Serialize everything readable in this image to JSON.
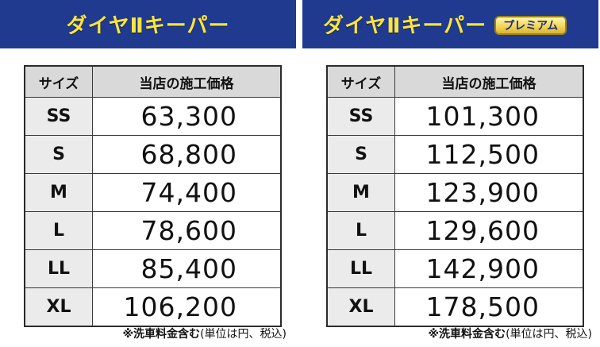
{
  "left": {
    "title": "ダイヤⅡキーパー",
    "headers": {
      "size": "サイズ",
      "price": "当店の施工価格"
    },
    "rows": [
      {
        "size": "SS",
        "price": "63,300"
      },
      {
        "size": "S",
        "price": "68,800"
      },
      {
        "size": "M",
        "price": "74,400"
      },
      {
        "size": "L",
        "price": "78,600"
      },
      {
        "size": "LL",
        "price": "85,400"
      },
      {
        "size": "XL",
        "price": "106,200"
      }
    ],
    "note_bold": "※洗車料金含む",
    "note_rest": "(単位は円、税込)"
  },
  "right": {
    "title": "ダイヤⅡキーパー",
    "badge": "プレミアム",
    "headers": {
      "size": "サイズ",
      "price": "当店の施工価格"
    },
    "rows": [
      {
        "size": "SS",
        "price": "101,300"
      },
      {
        "size": "S",
        "price": "112,500"
      },
      {
        "size": "M",
        "price": "123,900"
      },
      {
        "size": "L",
        "price": "129,600"
      },
      {
        "size": "LL",
        "price": "142,900"
      },
      {
        "size": "XL",
        "price": "178,500"
      }
    ],
    "note_bold": "※洗車料金含む",
    "note_rest": "(単位は円、税込)"
  },
  "colors": {
    "banner_bg": "#1f3a8f",
    "banner_text": "#ffe53a",
    "header_bg": "#d9d9d9",
    "badge_bg": "#f1d34f"
  }
}
